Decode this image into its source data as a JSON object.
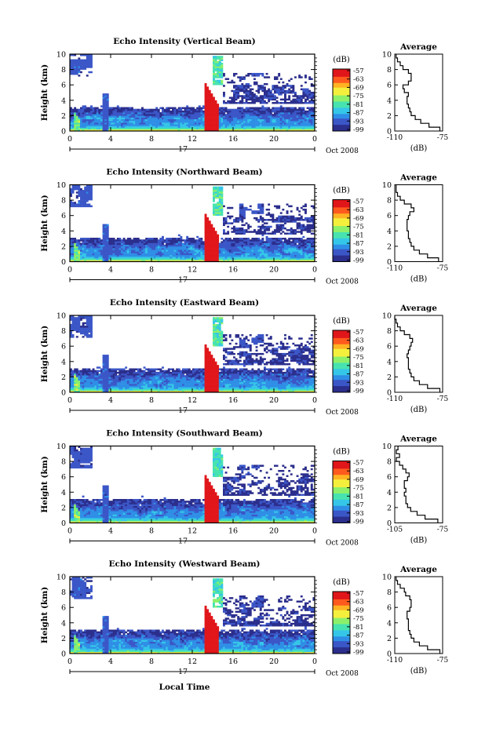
{
  "chart_data": [
    {
      "type": "heatmap",
      "title": "Echo Intensity (Vertical Beam)",
      "ylabel": "Height (km)",
      "ylim": [
        0,
        10
      ],
      "xlim": [
        0,
        24
      ],
      "x_ticks": [
        "0",
        "4",
        "8",
        "12",
        "16",
        "20",
        "0"
      ],
      "y_ticks": [
        "0",
        "2",
        "4",
        "6",
        "8",
        "10"
      ],
      "date_day": "17",
      "date_label": "Oct 2008",
      "colorbar": {
        "unit": "(dB)",
        "ticks": [
          "-57",
          "-63",
          "-69",
          "-75",
          "-81",
          "-87",
          "-93",
          "-99"
        ]
      },
      "profile": {
        "title": "Average",
        "xlabel": "(dB)",
        "x_ticks": [
          "-110",
          "-75"
        ],
        "xlim": [
          -110,
          -75
        ],
        "heights": [
          0,
          0.5,
          1,
          1.5,
          2,
          2.5,
          3,
          3.5,
          4,
          4.5,
          5,
          5.5,
          6,
          6.5,
          7,
          7.5,
          8,
          8.5,
          9,
          9.5
        ],
        "values": [
          -77,
          -85,
          -91,
          -95,
          -98,
          -99,
          -100,
          -101,
          -101,
          -100,
          -103,
          -104,
          -100,
          -98,
          -98,
          -100,
          -104,
          -106,
          -108,
          -109
        ]
      }
    },
    {
      "type": "heatmap",
      "title": "Echo Intensity (Northward Beam)",
      "ylabel": "Height (km)",
      "ylim": [
        0,
        10
      ],
      "xlim": [
        0,
        24
      ],
      "x_ticks": [
        "0",
        "4",
        "8",
        "12",
        "16",
        "20",
        "0"
      ],
      "y_ticks": [
        "0",
        "2",
        "4",
        "6",
        "8",
        "10"
      ],
      "date_day": "17",
      "date_label": "Oct 2008",
      "colorbar": {
        "unit": "(dB)",
        "ticks": [
          "-57",
          "-63",
          "-69",
          "-75",
          "-81",
          "-87",
          "-93",
          "-99"
        ]
      },
      "profile": {
        "title": "Average",
        "xlabel": "(dB)",
        "x_ticks": [
          "-110",
          "-75"
        ],
        "xlim": [
          -110,
          -75
        ],
        "heights": [
          0,
          0.5,
          1,
          1.5,
          2,
          2.5,
          3,
          3.5,
          4,
          4.5,
          5,
          5.5,
          6,
          6.5,
          7,
          7.5,
          8,
          8.5,
          9,
          9.5
        ],
        "values": [
          -78,
          -86,
          -92,
          -96,
          -98,
          -99,
          -100,
          -100,
          -101,
          -101,
          -101,
          -100,
          -99,
          -96,
          -98,
          -103,
          -106,
          -108,
          -109,
          -109
        ]
      }
    },
    {
      "type": "heatmap",
      "title": "Echo Intensity (Eastward Beam)",
      "ylabel": "Height (km)",
      "ylim": [
        0,
        10
      ],
      "xlim": [
        0,
        24
      ],
      "x_ticks": [
        "0",
        "4",
        "8",
        "12",
        "16",
        "20",
        "0"
      ],
      "y_ticks": [
        "0",
        "2",
        "4",
        "6",
        "8",
        "10"
      ],
      "date_day": "17",
      "date_label": "Oct 2008",
      "colorbar": {
        "unit": "(dB)",
        "ticks": [
          "-57",
          "-63",
          "-69",
          "-75",
          "-81",
          "-87",
          "-93",
          "-99"
        ]
      },
      "profile": {
        "title": "Average",
        "xlabel": "(dB)",
        "x_ticks": [
          "-110",
          "-75"
        ],
        "xlim": [
          -110,
          -75
        ],
        "heights": [
          0,
          0.5,
          1,
          1.5,
          2,
          2.5,
          3,
          3.5,
          4,
          4.5,
          5,
          5.5,
          6,
          6.5,
          7,
          7.5,
          8,
          8.5,
          9,
          9.5
        ],
        "values": [
          -77,
          -86,
          -92,
          -96,
          -98,
          -99,
          -100,
          -100,
          -100,
          -101,
          -100,
          -99,
          -98,
          -97,
          -99,
          -103,
          -106,
          -108,
          -109,
          -110
        ]
      }
    },
    {
      "type": "heatmap",
      "title": "Echo Intensity (Southward Beam)",
      "ylabel": "Height (km)",
      "ylim": [
        0,
        10
      ],
      "xlim": [
        0,
        24
      ],
      "x_ticks": [
        "0",
        "4",
        "8",
        "12",
        "16",
        "20",
        "0"
      ],
      "y_ticks": [
        "0",
        "2",
        "4",
        "6",
        "8",
        "10"
      ],
      "date_day": "17",
      "date_label": "Oct 2008",
      "colorbar": {
        "unit": "(dB)",
        "ticks": [
          "-57",
          "-63",
          "-69",
          "-75",
          "-81",
          "-87",
          "-93",
          "-99"
        ]
      },
      "profile": {
        "title": "Average",
        "xlabel": "(dB)",
        "x_ticks": [
          "-105",
          "-75"
        ],
        "xlim": [
          -105,
          -75
        ],
        "heights": [
          0,
          0.5,
          1,
          1.5,
          2,
          2.5,
          3,
          3.5,
          4,
          4.5,
          5,
          5.5,
          6,
          6.5,
          7,
          7.5,
          8,
          8.5,
          9,
          9.5
        ],
        "values": [
          -78,
          -86,
          -91,
          -95,
          -97,
          -98,
          -98,
          -99,
          -98,
          -99,
          -99,
          -97,
          -96,
          -98,
          -100,
          -102,
          -104,
          -102,
          -104,
          -103
        ]
      }
    },
    {
      "type": "heatmap",
      "title": "Echo Intensity (Westward Beam)",
      "ylabel": "Height (km)",
      "ylim": [
        0,
        10
      ],
      "xlim": [
        0,
        24
      ],
      "x_ticks": [
        "0",
        "4",
        "8",
        "12",
        "16",
        "20",
        "0"
      ],
      "y_ticks": [
        "0",
        "2",
        "4",
        "6",
        "8",
        "10"
      ],
      "date_day": "17",
      "date_label": "Oct 2008",
      "colorbar": {
        "unit": "(dB)",
        "ticks": [
          "-57",
          "-63",
          "-69",
          "-75",
          "-81",
          "-87",
          "-93",
          "-99"
        ]
      },
      "profile": {
        "title": "Average",
        "xlabel": "(dB)",
        "x_ticks": [
          "-110",
          "-75"
        ],
        "xlim": [
          -110,
          -75
        ],
        "heights": [
          0,
          0.5,
          1,
          1.5,
          2,
          2.5,
          3,
          3.5,
          4,
          4.5,
          5,
          5.5,
          6,
          6.5,
          7,
          7.5,
          8,
          8.5,
          9,
          9.5
        ],
        "values": [
          -77,
          -86,
          -92,
          -96,
          -98,
          -99,
          -100,
          -100,
          -100,
          -101,
          -101,
          -99,
          -98,
          -98,
          -99,
          -102,
          -103,
          -106,
          -108,
          -109
        ]
      }
    }
  ],
  "footer": {
    "xlabel": "Local Time"
  },
  "colors": {
    "scale": [
      "#2b2e8c",
      "#3b56c7",
      "#2f8ee6",
      "#35c6e8",
      "#47e3b0",
      "#8cf06a",
      "#f4ef3c",
      "#ffb323",
      "#ff5a1e",
      "#e0161a"
    ]
  }
}
